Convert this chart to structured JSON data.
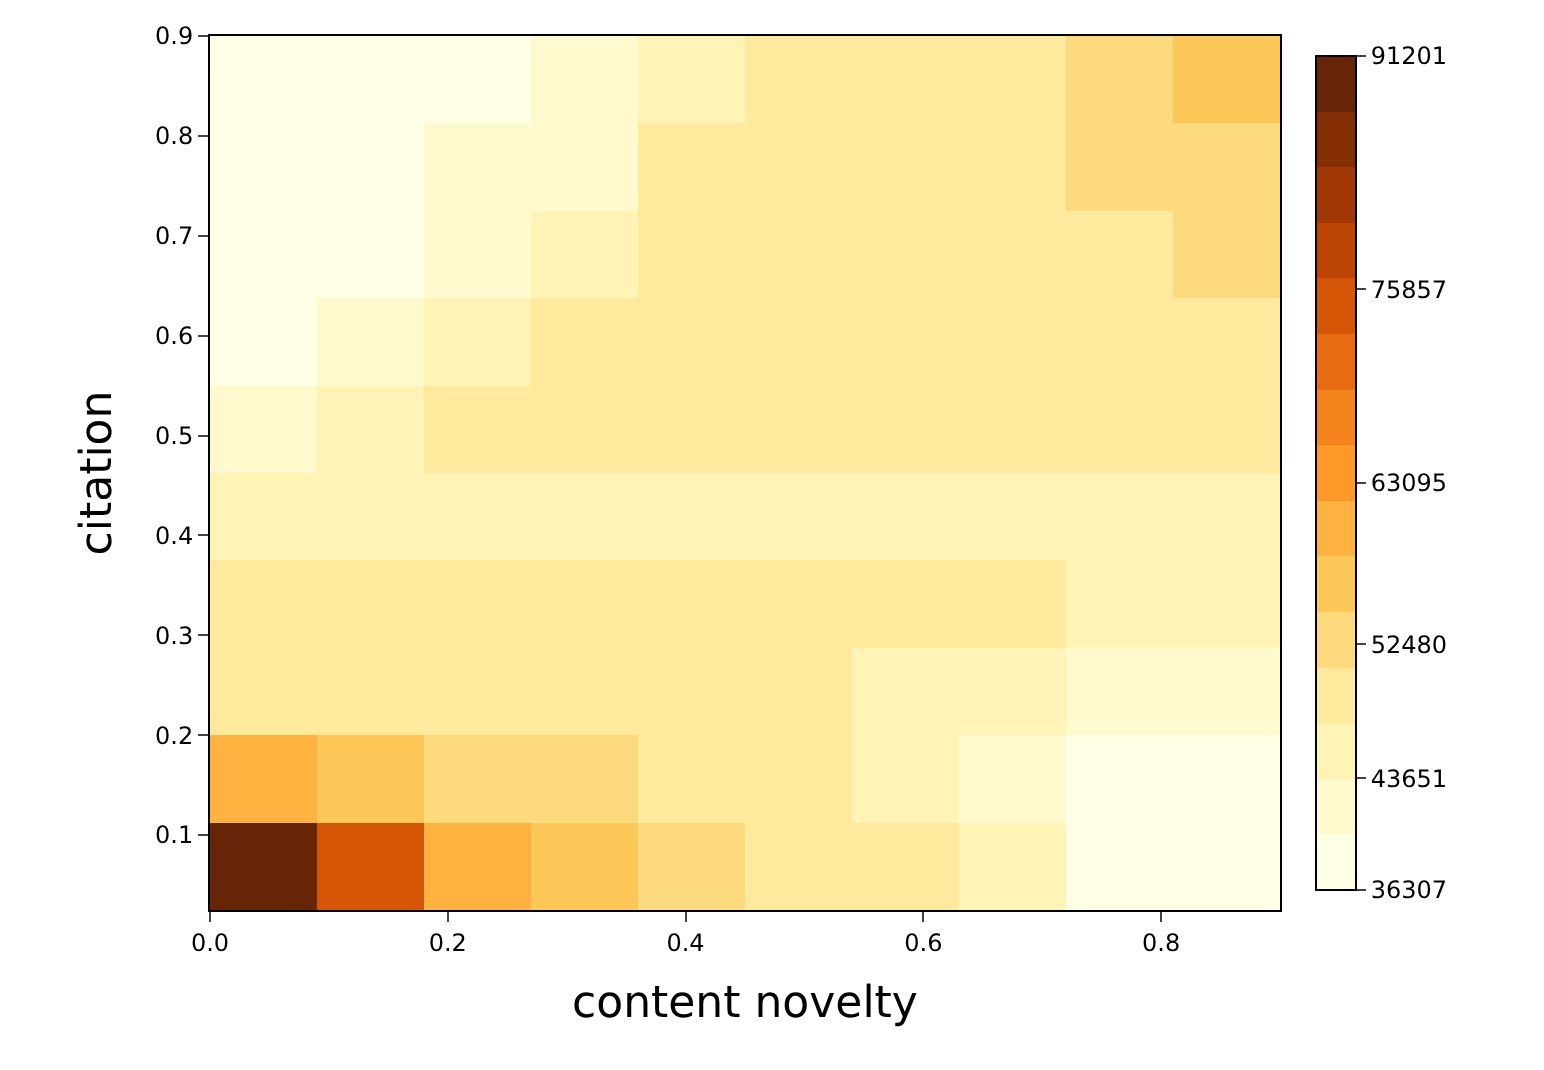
{
  "chart_data": {
    "type": "heatmap",
    "xlabel": "content novelty",
    "ylabel": "citation",
    "cells": [
      [
        37400,
        37400,
        39800,
        42300,
        45000,
        47900,
        47900,
        50900,
        54100,
        57500
      ],
      [
        37400,
        39800,
        42300,
        42300,
        47900,
        47900,
        47900,
        50900,
        54100,
        54100
      ],
      [
        39800,
        39800,
        42300,
        45000,
        47900,
        47900,
        47900,
        50900,
        50900,
        54100
      ],
      [
        39800,
        42300,
        45000,
        47900,
        47900,
        47900,
        47900,
        50900,
        50900,
        50900
      ],
      [
        42300,
        45000,
        47900,
        47900,
        47900,
        47900,
        47900,
        47900,
        47900,
        47900
      ],
      [
        45000,
        45000,
        45000,
        45000,
        45000,
        45000,
        45000,
        45000,
        45000,
        45000
      ],
      [
        47900,
        47900,
        47900,
        47900,
        47900,
        47900,
        47900,
        47900,
        45000,
        45000
      ],
      [
        50900,
        50900,
        50900,
        50900,
        47900,
        47900,
        45000,
        45000,
        42300,
        42300
      ],
      [
        61200,
        57500,
        54100,
        54100,
        50900,
        47900,
        45000,
        42300,
        39800,
        37400
      ],
      [
        88400,
        73600,
        61200,
        57500,
        54100,
        50900,
        47900,
        45000,
        39800,
        39800
      ]
    ],
    "xlim": [
      0.0,
      0.9
    ],
    "ylim": [
      0.025,
      0.9
    ],
    "xticks": [
      {
        "value": 0.0,
        "label": "0.0"
      },
      0.2,
      0.4,
      0.6,
      0.8
    ],
    "yticks": [
      0.1,
      0.2,
      0.3,
      0.4,
      0.5,
      0.6,
      0.7,
      0.8,
      0.9
    ],
    "clim": [
      36307,
      91201
    ],
    "cticks": [
      36307,
      43651,
      52480,
      63095,
      75857,
      91201
    ]
  }
}
